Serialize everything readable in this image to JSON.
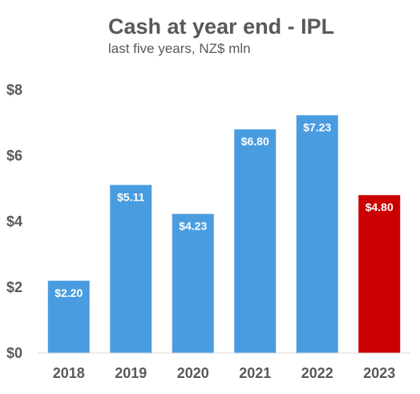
{
  "title": "Cash at year end - IPL",
  "subtitle": "last five years, NZ$ mln",
  "chart_data": {
    "type": "bar",
    "title": "Cash at year end - IPL",
    "subtitle": "last five years, NZ$ mln",
    "xlabel": "",
    "ylabel": "",
    "categories": [
      "2018",
      "2019",
      "2020",
      "2021",
      "2022",
      "2023"
    ],
    "values": [
      2.2,
      5.11,
      4.23,
      6.8,
      7.23,
      4.8
    ],
    "data_labels": [
      "$2.20",
      "$5.11",
      "$4.23",
      "$6.80",
      "$7.23",
      "$4.80"
    ],
    "ylim": [
      0,
      8
    ],
    "y_ticks": [
      0,
      2,
      4,
      6,
      8
    ],
    "y_tick_labels": [
      "$0",
      "$2",
      "$4",
      "$6",
      "$8"
    ],
    "colors": [
      "#4a9ce0",
      "#4a9ce0",
      "#4a9ce0",
      "#4a9ce0",
      "#4a9ce0",
      "#cc0000"
    ],
    "grid": false,
    "legend": "none"
  }
}
